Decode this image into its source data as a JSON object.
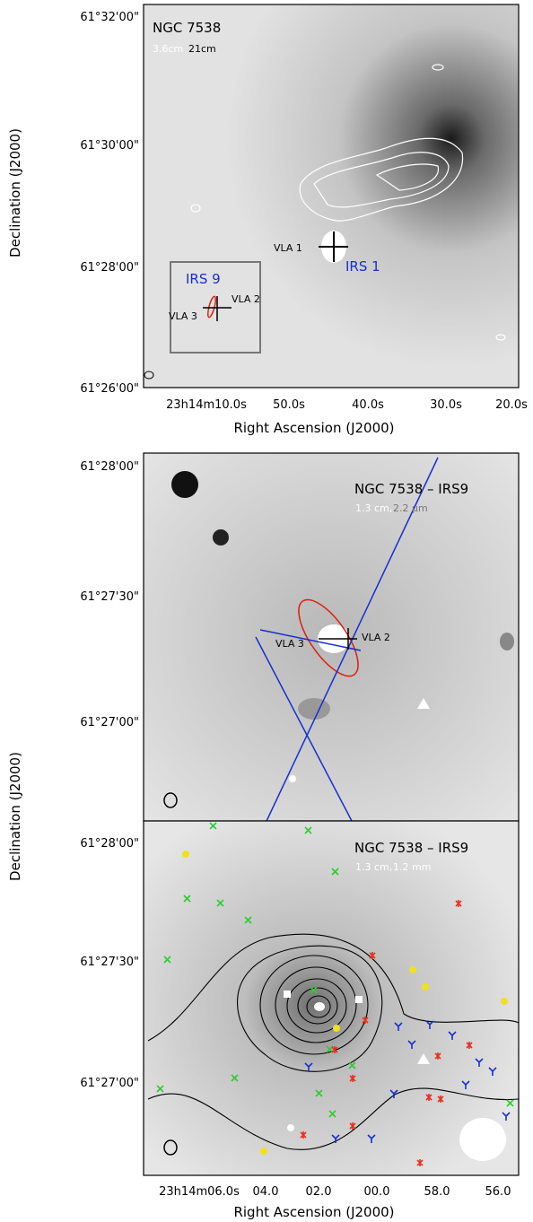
{
  "panels": [
    {
      "title": "NGC 7538",
      "legend": [
        "3.6cm",
        "21cm"
      ],
      "labels": [
        "VLA 1",
        "IRS 1",
        "IRS 9",
        "VLA 2",
        "VLA 3"
      ],
      "y_ticks": [
        "61°32'00\"",
        "61°30'00\"",
        "61°28'00\"",
        "61°26'00\""
      ],
      "x_ticks": [
        "23h14m10.0s",
        "50.0s",
        "40.0s",
        "30.0s",
        "20.0s"
      ],
      "x_axis_label": "Right Ascension (J2000)",
      "y_axis_label": "Declination (J2000)"
    },
    {
      "title": "NGC 7538 – IRS9",
      "legend": [
        "1.3 cm,",
        "2.2 μm"
      ],
      "labels": [
        "VLA 3",
        "VLA 2"
      ],
      "y_ticks": [
        "61°28'00\"",
        "61°27'30\"",
        "61°27'00\""
      ]
    },
    {
      "title": "NGC 7538 – IRS9",
      "legend": [
        "1.3 cm,",
        "1.2 mm"
      ],
      "y_ticks": [
        "61°28'00\"",
        "61°27'30\"",
        "61°27'00\""
      ],
      "x_ticks": [
        "23h14m06.0s",
        "04.0",
        "02.0",
        "00.0",
        "58.0",
        "56.0"
      ],
      "x_axis_label": "Right Ascension (J2000)",
      "y_axis_label": "Declination (J2000)"
    }
  ]
}
